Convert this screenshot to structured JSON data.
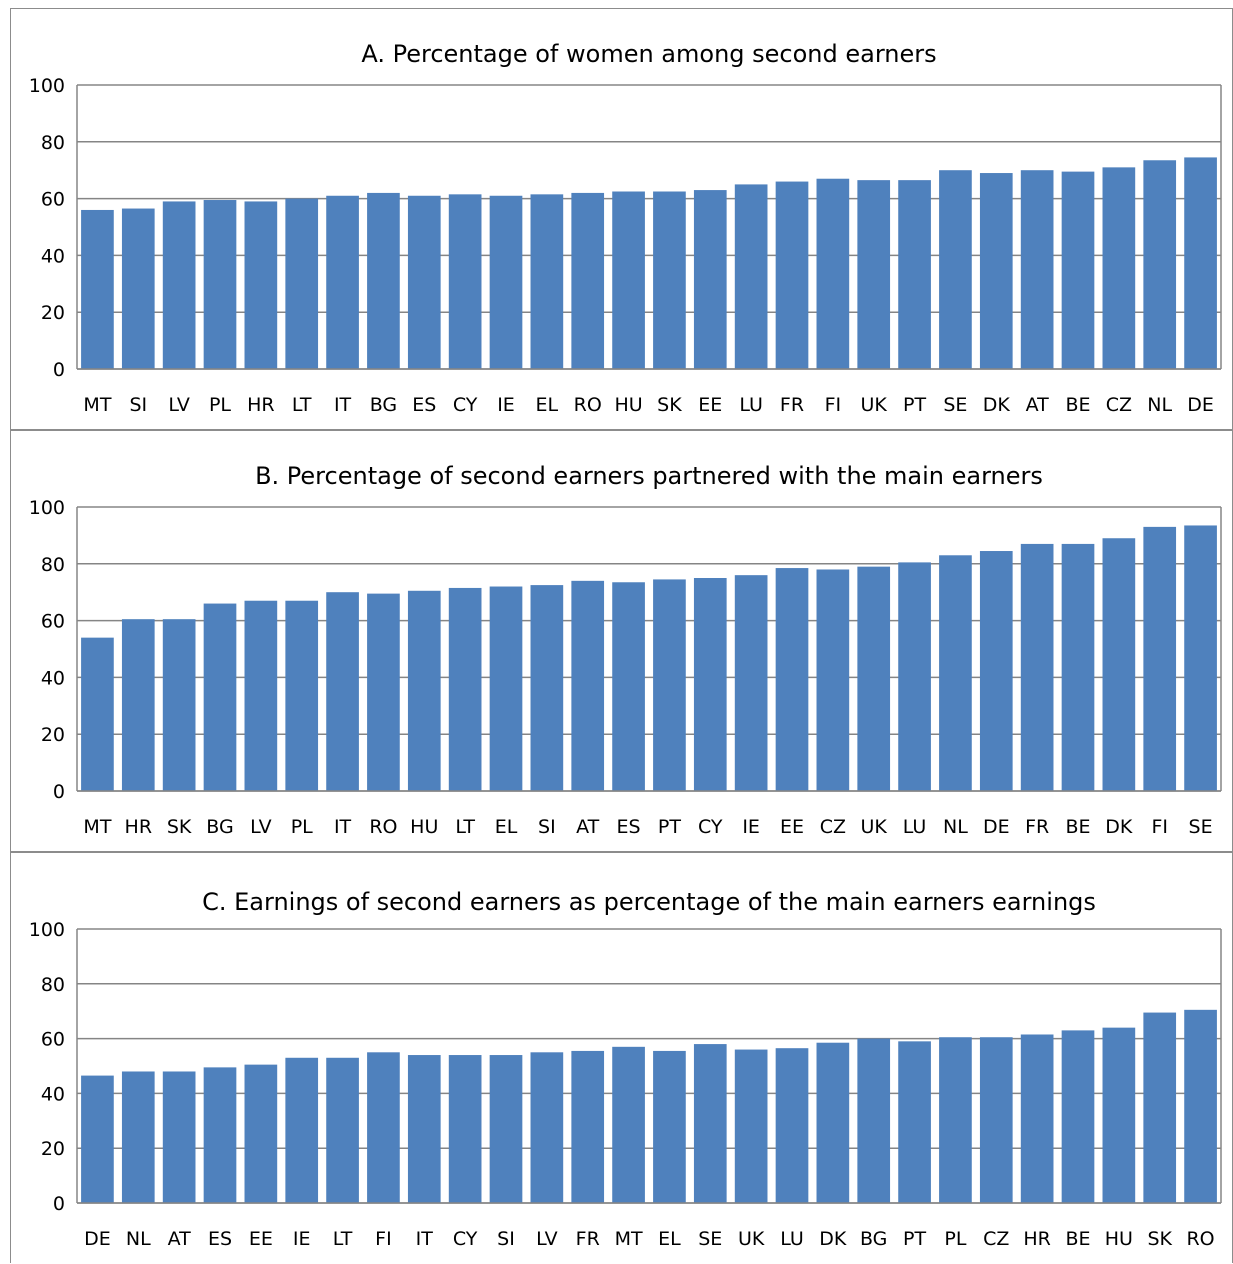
{
  "colors": {
    "bar": "#4f81bd",
    "grid": "#858585",
    "axis": "#858585"
  },
  "chart_data": [
    {
      "type": "bar",
      "title": "A. Percentage of women among second earners",
      "xlabel": "",
      "ylabel": "",
      "ylim": [
        0,
        100
      ],
      "yticks": [
        "0",
        "20",
        "40",
        "60",
        "80",
        "100"
      ],
      "grid": true,
      "categories": [
        "MT",
        "SI",
        "LV",
        "PL",
        "HR",
        "LT",
        "IT",
        "BG",
        "ES",
        "CY",
        "IE",
        "EL",
        "RO",
        "HU",
        "SK",
        "EE",
        "LU",
        "FR",
        "FI",
        "UK",
        "PT",
        "SE",
        "DK",
        "AT",
        "BE",
        "CZ",
        "NL",
        "DE"
      ],
      "values": [
        56,
        56.5,
        59,
        59.5,
        59,
        60,
        61,
        62,
        61,
        61.5,
        61,
        61.5,
        62,
        62.5,
        62.5,
        63,
        65,
        66,
        67,
        66.5,
        66.5,
        70,
        69,
        70,
        69.5,
        71,
        73.5,
        74.5
      ]
    },
    {
      "type": "bar",
      "title": "B. Percentage of second earners partnered with the main earners",
      "xlabel": "",
      "ylabel": "",
      "ylim": [
        0,
        100
      ],
      "yticks": [
        "0",
        "20",
        "40",
        "60",
        "80",
        "100"
      ],
      "grid": true,
      "categories": [
        "MT",
        "HR",
        "SK",
        "BG",
        "LV",
        "PL",
        "IT",
        "RO",
        "HU",
        "LT",
        "EL",
        "SI",
        "AT",
        "ES",
        "PT",
        "CY",
        "IE",
        "EE",
        "CZ",
        "UK",
        "LU",
        "NL",
        "DE",
        "FR",
        "BE",
        "DK",
        "FI",
        "SE"
      ],
      "values": [
        54,
        60.5,
        60.5,
        66,
        67,
        67,
        70,
        69.5,
        70.5,
        71.5,
        72,
        72.5,
        74,
        73.5,
        74.5,
        75,
        76,
        78.5,
        78,
        79,
        80.5,
        83,
        84.5,
        87,
        87,
        89,
        93,
        93.5
      ]
    },
    {
      "type": "bar",
      "title": "C. Earnings of second earners as percentage of the main earners earnings",
      "xlabel": "",
      "ylabel": "",
      "ylim": [
        0,
        100
      ],
      "yticks": [
        "0",
        "20",
        "40",
        "60",
        "80",
        "100"
      ],
      "grid": true,
      "categories": [
        "DE",
        "NL",
        "AT",
        "ES",
        "EE",
        "IE",
        "LT",
        "FI",
        "IT",
        "CY",
        "SI",
        "LV",
        "FR",
        "MT",
        "EL",
        "SE",
        "UK",
        "LU",
        "DK",
        "BG",
        "PT",
        "PL",
        "CZ",
        "HR",
        "BE",
        "HU",
        "SK",
        "RO"
      ],
      "values": [
        46.5,
        48,
        48,
        49.5,
        50.5,
        53,
        53,
        55,
        54,
        54,
        54,
        55,
        55.5,
        57,
        55.5,
        58,
        56,
        56.5,
        58.5,
        60,
        59,
        60.5,
        60.5,
        61.5,
        63,
        64,
        69.5,
        70.5
      ]
    }
  ]
}
